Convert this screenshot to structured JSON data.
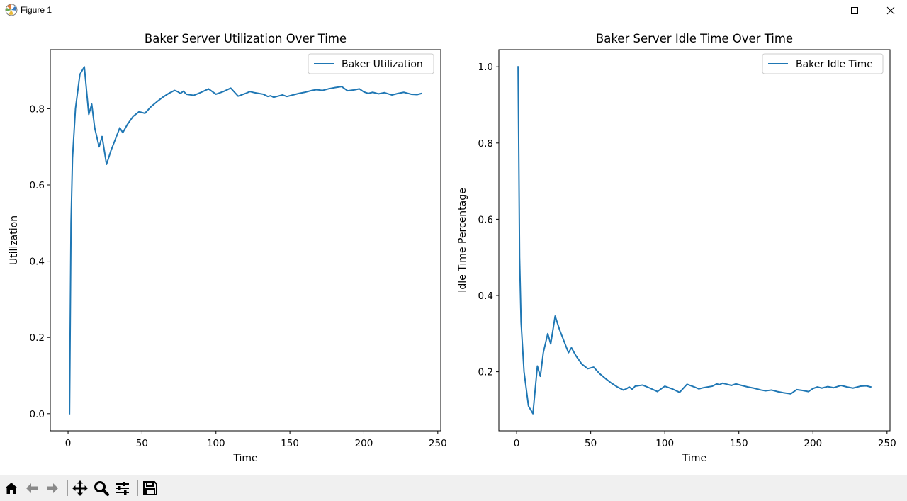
{
  "window": {
    "title": "Figure 1",
    "icons": [
      "matplotlib-icon",
      "minimize-icon",
      "maximize-icon",
      "close-icon"
    ]
  },
  "toolbar": {
    "icons": [
      "home-icon",
      "back-arrow-icon",
      "forward-arrow-icon",
      "pan-icon",
      "zoom-icon",
      "configure-subplots-icon",
      "save-icon"
    ]
  },
  "colors": {
    "line": "#1f77b4"
  },
  "chart_data": [
    {
      "type": "line",
      "title": "Baker Server Utilization Over Time",
      "xlabel": "Time",
      "ylabel": "Utilization",
      "xlim": [
        -12,
        252
      ],
      "ylim": [
        -0.045,
        0.955
      ],
      "xticks": [
        0,
        50,
        100,
        150,
        200,
        250
      ],
      "yticks": [
        0.0,
        0.2,
        0.4,
        0.6,
        0.8
      ],
      "ytick_labels": [
        "0.0",
        "0.2",
        "0.4",
        "0.6",
        "0.8"
      ],
      "legend": "upper right",
      "series": [
        {
          "name": "Baker Utilization",
          "x": [
            1,
            2,
            3,
            5,
            8,
            11,
            14,
            16,
            18,
            21,
            23,
            26,
            29,
            32,
            35,
            37,
            40,
            44,
            48,
            52,
            56,
            60,
            64,
            68,
            72,
            74,
            76,
            78,
            80,
            85,
            90,
            95,
            100,
            105,
            110,
            115,
            120,
            123,
            126,
            129,
            132,
            135,
            137,
            139,
            141,
            145,
            148,
            152,
            156,
            160,
            165,
            168,
            172,
            176,
            180,
            185,
            189,
            193,
            197,
            200,
            203,
            206,
            210,
            214,
            219,
            223,
            227,
            232,
            236,
            239
          ],
          "y": [
            0.0,
            0.5,
            0.67,
            0.8,
            0.89,
            0.91,
            0.785,
            0.812,
            0.75,
            0.7,
            0.727,
            0.654,
            0.69,
            0.72,
            0.75,
            0.737,
            0.758,
            0.78,
            0.792,
            0.788,
            0.805,
            0.818,
            0.83,
            0.84,
            0.848,
            0.845,
            0.84,
            0.846,
            0.838,
            0.835,
            0.843,
            0.852,
            0.838,
            0.845,
            0.854,
            0.833,
            0.84,
            0.845,
            0.842,
            0.84,
            0.838,
            0.832,
            0.834,
            0.83,
            0.832,
            0.836,
            0.832,
            0.836,
            0.84,
            0.843,
            0.848,
            0.85,
            0.848,
            0.852,
            0.855,
            0.858,
            0.847,
            0.849,
            0.852,
            0.844,
            0.84,
            0.843,
            0.839,
            0.842,
            0.836,
            0.84,
            0.843,
            0.838,
            0.837,
            0.84
          ]
        }
      ]
    },
    {
      "type": "line",
      "title": "Baker Server Idle Time Over Time",
      "xlabel": "Time",
      "ylabel": "Idle Time Percentage",
      "xlim": [
        -12,
        252
      ],
      "ylim": [
        0.045,
        1.045
      ],
      "xticks": [
        0,
        50,
        100,
        150,
        200,
        250
      ],
      "yticks": [
        0.2,
        0.4,
        0.6,
        0.8,
        1.0
      ],
      "ytick_labels": [
        "0.2",
        "0.4",
        "0.6",
        "0.8",
        "1.0"
      ],
      "legend": "upper right",
      "series": [
        {
          "name": "Baker Idle Time",
          "x": [
            1,
            2,
            3,
            5,
            8,
            11,
            14,
            16,
            18,
            21,
            23,
            26,
            29,
            32,
            35,
            37,
            40,
            44,
            48,
            52,
            56,
            60,
            64,
            68,
            72,
            74,
            76,
            78,
            80,
            85,
            90,
            95,
            100,
            105,
            110,
            115,
            120,
            123,
            126,
            129,
            132,
            135,
            137,
            139,
            141,
            145,
            148,
            152,
            156,
            160,
            165,
            168,
            172,
            176,
            180,
            185,
            189,
            193,
            197,
            200,
            203,
            206,
            210,
            214,
            219,
            223,
            227,
            232,
            236,
            239
          ],
          "y": [
            1.0,
            0.5,
            0.33,
            0.2,
            0.11,
            0.09,
            0.215,
            0.188,
            0.25,
            0.3,
            0.273,
            0.346,
            0.31,
            0.28,
            0.25,
            0.263,
            0.242,
            0.22,
            0.208,
            0.212,
            0.195,
            0.182,
            0.17,
            0.16,
            0.152,
            0.155,
            0.16,
            0.154,
            0.162,
            0.165,
            0.157,
            0.148,
            0.162,
            0.155,
            0.146,
            0.167,
            0.16,
            0.155,
            0.158,
            0.16,
            0.162,
            0.168,
            0.166,
            0.17,
            0.168,
            0.164,
            0.168,
            0.164,
            0.16,
            0.157,
            0.152,
            0.15,
            0.152,
            0.148,
            0.145,
            0.142,
            0.153,
            0.151,
            0.148,
            0.156,
            0.16,
            0.157,
            0.161,
            0.158,
            0.164,
            0.16,
            0.157,
            0.162,
            0.163,
            0.16
          ]
        }
      ]
    }
  ]
}
